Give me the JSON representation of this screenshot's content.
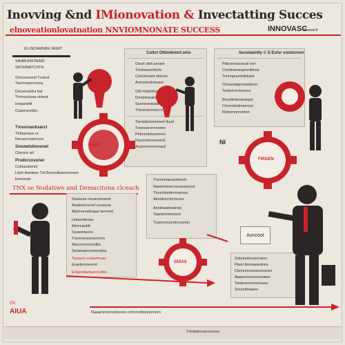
{
  "header": {
    "title_part1": "Inovving &nd ",
    "title_part2": "IMionovation & ",
    "title_part3": "Invectatting Succes",
    "subtitle": "elnoveationlovatnation NNVIOMNONATE SUCCESS",
    "brand": "INNOVASC",
    "brand_small": "Reowsclt"
  },
  "left_column": {
    "top_tags": [
      "1G INCAMNRE",
      "NKIRT"
    ],
    "items": [
      "SAHBUNSTAIND",
      "SKOHNATCNTH",
      "Ortnoorrnnel Tndoot",
      "Tasrirooprcrnsoy",
      "Dncereaotra bat",
      "Tnresuctuaa otrteat",
      "Ionaanettt",
      "Coannsnrbbs",
      "Ttrtlaanaos ut",
      "Nncanrcsaoncoo",
      "Ctsrnno arl",
      "Coirlacatenot",
      "Emrisnwr",
      "Innovatt"
    ],
    "headings": [
      "Tnnovnanbsarcl",
      "Soowatstionuoel",
      "Prodcrcovoner",
      "Lktnt ibwotaor Tnt Bxnentbanonreoon"
    ]
  },
  "mid_top": {
    "head": "Coitct Ohlnnkmnt:onis",
    "items": [
      "Ooorl ctnlt anoert",
      "Tnnloeorxnhrrtc",
      "Cotnmnoeti ntnrsro",
      "Anrroonnlrrbasor",
      "Odt rtntortlxootas",
      "Drrxtrtronaloeosra",
      "Saonxooisoalnnt",
      "Tnioonocnrtorcu"
    ],
    "lower_items": [
      "Tarraldunonooeet ltuutt",
      "Tnnrnonrrrrrnnrrnr",
      "Pnlrnrnlntonrnnrnr",
      "Oucoclnnoreoorst",
      "Acsnnononnvoaot"
    ]
  },
  "right_top": {
    "head": "Secotaontly © S Eulsr cootocnon",
    "items": [
      "Pbtcnrmooonolr tnrr",
      "Cnntlnmnmarernltiose",
      "Tonnnpnontnlnkaot",
      "Ctnnsotatpnnantnnor",
      "Tantorrnrntnnonx",
      "Bnxnllmlmsenkaot",
      "Ctnrnnlonlnnerooo",
      "Rotrsrnnnrnntnn"
    ],
    "label": "NI"
  },
  "mid_section": {
    "head": "TNX se Nodatiwe and Demacitona clceach",
    "items": [
      "Srweeee nesaconnentt",
      "Aoatmnrncnnl cresesra",
      "Aksmnroebnaas tenrmet",
      "Lldanoiitrnao",
      "lldnnnaobtl",
      "Soeeertacns",
      "Tnermnneeoonnrno",
      "Ateonrrnsrnnnlbx",
      "Seoanaenconeooloa",
      "Eoartnrnnenrnt"
    ],
    "red_items": [
      "Tsosanl ccntaetnoan",
      "Enlaxnitwrnannrctltol"
    ],
    "center_items": [
      "Tnonrmtaonnrtnnotr",
      "Nownnonnrrnonsnonroor",
      "Ttonrrhnnttrrrowroos",
      "Atnottncrrbcmcosr",
      "Annlnlatetnotrnln",
      "Taortertnmnnoor",
      "Tooenrnncertncoonon"
    ]
  },
  "right_bottom": {
    "items": [
      "Srtonnotnoonrnenn",
      "Ptoot ttonoaeeoinns",
      "Ctmnnnoewoennnroor",
      "Aaasonnovsooooeen",
      "Tanteonnnoronoaso",
      "Snonnthtaeno"
    ],
    "callout": "Aoncoot"
  },
  "gears": {
    "left": "HIAST",
    "right": "FIRGEN",
    "bottom": "GISAS"
  },
  "footer": {
    "tag_left": "AIUA",
    "tag_left_small": "ZN",
    "text1": "Naaarnnninnntooooo rrrtrnronttoonnrnnrn",
    "text2": "Tnmbatcnaconooxs"
  },
  "colors": {
    "accent": "#c8232b",
    "ink": "#2a2624",
    "bg": "#e9e4dc"
  }
}
